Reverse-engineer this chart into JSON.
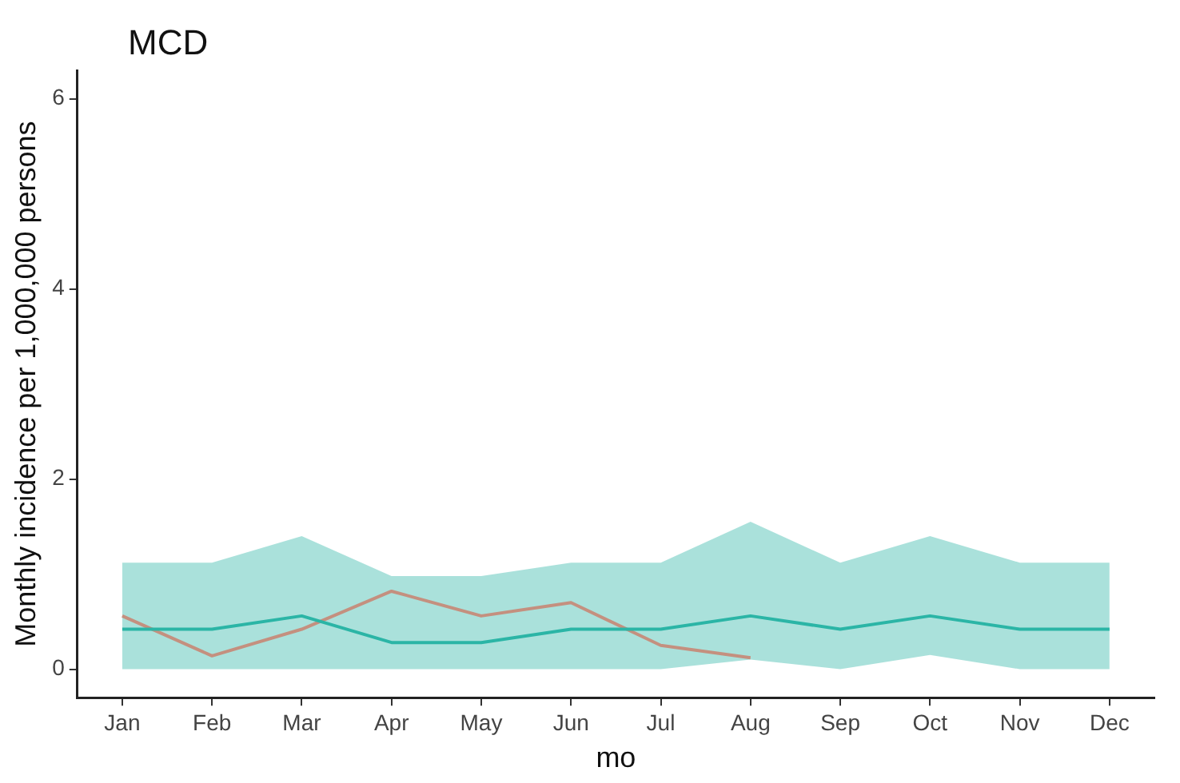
{
  "chart_data": {
    "type": "line",
    "title": "MCD",
    "xlabel": "mo",
    "ylabel": "Monthly incidence per 1,000,000 persons",
    "categories": [
      "Jan",
      "Feb",
      "Mar",
      "Apr",
      "May",
      "Jun",
      "Jul",
      "Aug",
      "Sep",
      "Oct",
      "Nov",
      "Dec"
    ],
    "series": [
      {
        "color": "#2bb5a6",
        "values": [
          0.42,
          0.42,
          0.56,
          0.28,
          0.28,
          0.42,
          0.42,
          0.56,
          0.42,
          0.56,
          0.42,
          0.42
        ],
        "lower": [
          0,
          0,
          0,
          0,
          0,
          0,
          0,
          0.1,
          0,
          0.15,
          0,
          0
        ],
        "upper": [
          1.12,
          1.12,
          1.4,
          0.98,
          0.98,
          1.12,
          1.12,
          1.55,
          1.12,
          1.4,
          1.12,
          1.12
        ]
      },
      {
        "color": "#c4907f",
        "values": [
          0.56,
          0.14,
          0.42,
          0.82,
          0.56,
          0.7,
          0.25,
          0.12,
          null,
          null,
          null,
          null
        ]
      }
    ],
    "ylim": [
      -0.3,
      6.3
    ],
    "yticks": [
      0,
      2,
      4,
      6
    ],
    "grid": false,
    "legend": false
  }
}
